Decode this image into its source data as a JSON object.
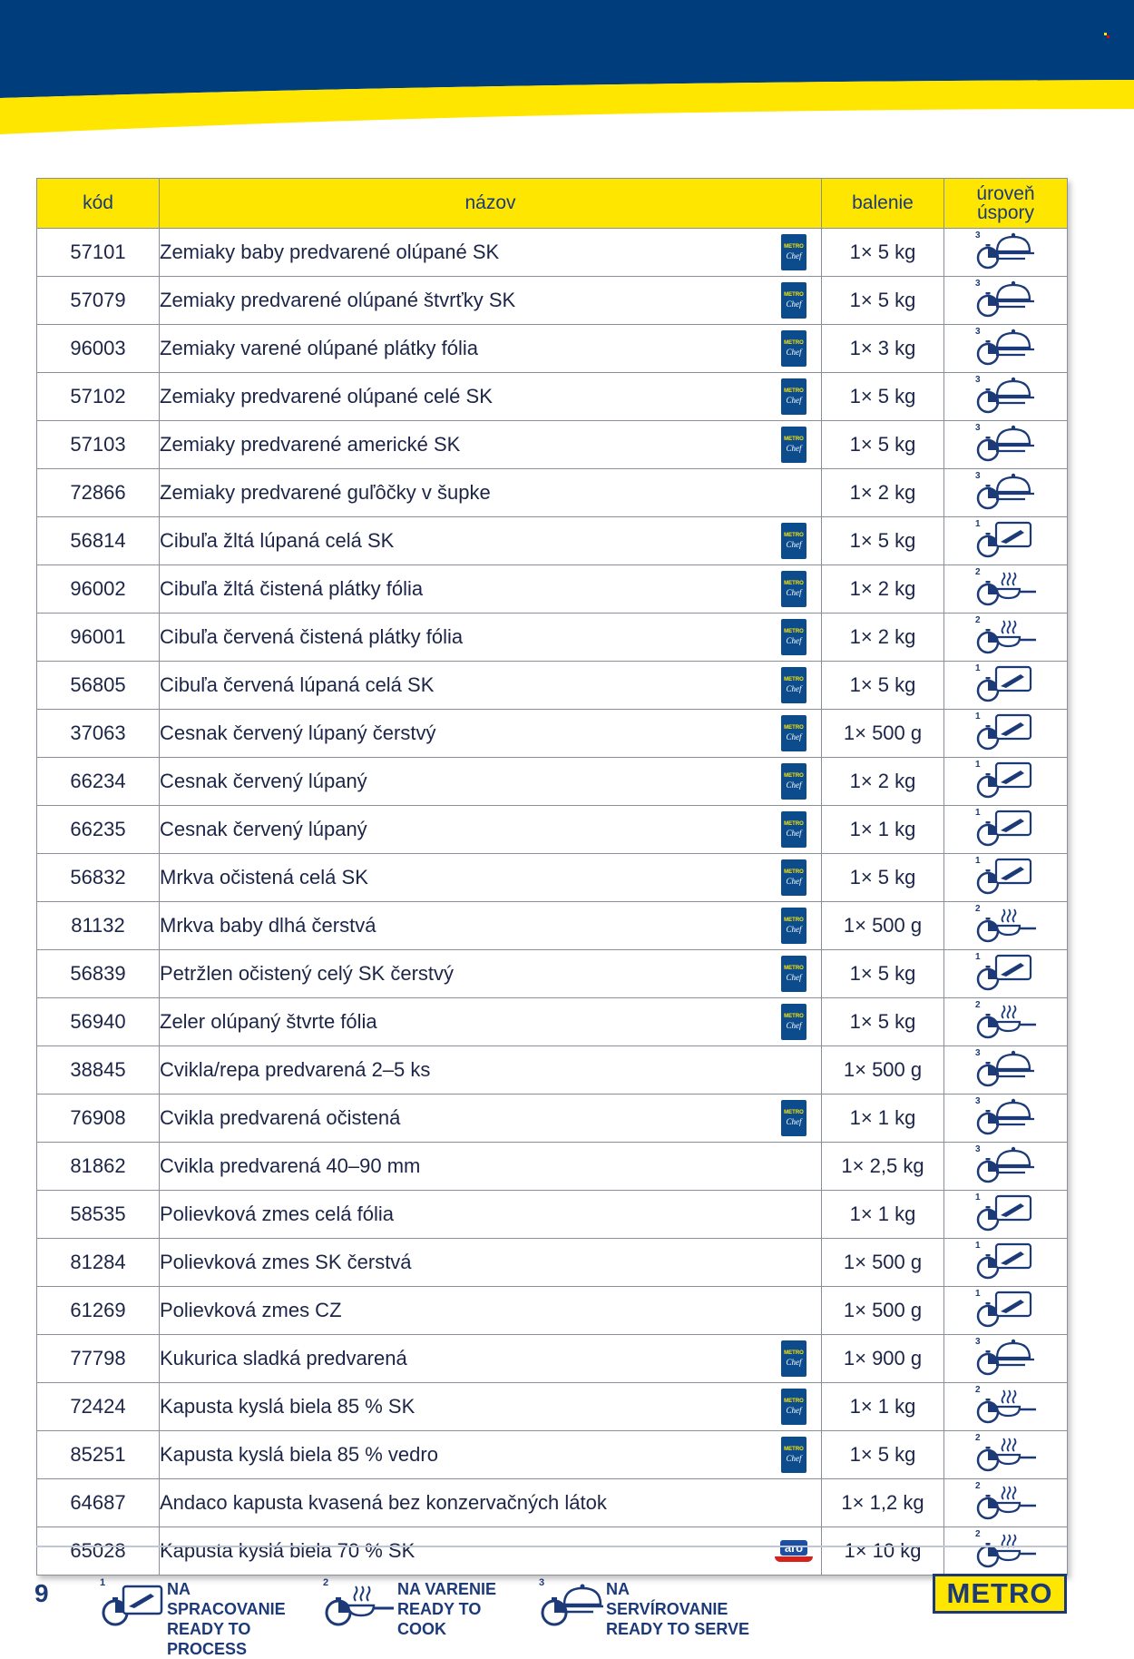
{
  "colors": {
    "brand_blue": "#003d7c",
    "brand_yellow": "#ffe600",
    "text_dark": "#1d2b4f"
  },
  "table": {
    "headers": {
      "code": "kód",
      "name": "názov",
      "pack": "balenie",
      "savings_line1": "úroveň",
      "savings_line2": "úspory"
    },
    "rows": [
      {
        "code": "57101",
        "name": "Zemiaky baby predvarené olúpané SK",
        "brand": "metro-chef",
        "pack": "1× 5 kg",
        "level": 3
      },
      {
        "code": "57079",
        "name": "Zemiaky predvarené olúpané štvrťky SK",
        "brand": "metro-chef",
        "pack": "1× 5 kg",
        "level": 3
      },
      {
        "code": "96003",
        "name": "Zemiaky varené olúpané plátky fólia",
        "brand": "metro-chef",
        "pack": "1× 3 kg",
        "level": 3
      },
      {
        "code": "57102",
        "name": "Zemiaky predvarené olúpané celé SK",
        "brand": "metro-chef",
        "pack": "1× 5 kg",
        "level": 3
      },
      {
        "code": "57103",
        "name": "Zemiaky predvarené americké SK",
        "brand": "metro-chef",
        "pack": "1× 5 kg",
        "level": 3
      },
      {
        "code": "72866",
        "name": "Zemiaky predvarené guľôčky v šupke",
        "brand": "",
        "pack": "1× 2 kg",
        "level": 3
      },
      {
        "code": "56814",
        "name": "Cibuľa žltá lúpaná celá SK",
        "brand": "metro-chef",
        "pack": "1× 5 kg",
        "level": 1
      },
      {
        "code": "96002",
        "name": "Cibuľa žltá čistená plátky fólia",
        "brand": "metro-chef",
        "pack": "1× 2 kg",
        "level": 2
      },
      {
        "code": "96001",
        "name": "Cibuľa červená čistená plátky fólia",
        "brand": "metro-chef",
        "pack": "1× 2 kg",
        "level": 2
      },
      {
        "code": "56805",
        "name": "Cibuľa červená lúpaná celá SK",
        "brand": "metro-chef",
        "pack": "1× 5 kg",
        "level": 1
      },
      {
        "code": "37063",
        "name": "Cesnak červený lúpaný čerstvý",
        "brand": "metro-chef",
        "pack": "1× 500 g",
        "level": 1
      },
      {
        "code": "66234",
        "name": "Cesnak červený lúpaný",
        "brand": "metro-chef",
        "pack": "1× 2 kg",
        "level": 1
      },
      {
        "code": "66235",
        "name": "Cesnak červený lúpaný",
        "brand": "metro-chef",
        "pack": "1× 1 kg",
        "level": 1
      },
      {
        "code": "56832",
        "name": "Mrkva očistená celá SK",
        "brand": "metro-chef",
        "pack": "1× 5 kg",
        "level": 1
      },
      {
        "code": "81132",
        "name": "Mrkva baby dlhá čerstvá",
        "brand": "metro-chef",
        "pack": "1× 500 g",
        "level": 2
      },
      {
        "code": "56839",
        "name": "Petržlen očistený celý SK čerstvý",
        "brand": "metro-chef",
        "pack": "1× 5 kg",
        "level": 1
      },
      {
        "code": "56940",
        "name": "Zeler olúpaný štvrte fólia",
        "brand": "metro-chef",
        "pack": "1× 5 kg",
        "level": 2
      },
      {
        "code": "38845",
        "name": "Cvikla/repa predvarená 2–5 ks",
        "brand": "",
        "pack": "1× 500 g",
        "level": 3
      },
      {
        "code": "76908",
        "name": "Cvikla predvarená očistená",
        "brand": "metro-chef",
        "pack": "1× 1 kg",
        "level": 3
      },
      {
        "code": "81862",
        "name": "Cvikla predvarená 40–90 mm",
        "brand": "",
        "pack": "1× 2,5 kg",
        "level": 3
      },
      {
        "code": "58535",
        "name": "Polievková zmes celá fólia",
        "brand": "",
        "pack": "1× 1 kg",
        "level": 1
      },
      {
        "code": "81284",
        "name": "Polievková zmes SK čerstvá",
        "brand": "",
        "pack": "1× 500 g",
        "level": 1
      },
      {
        "code": "61269",
        "name": "Polievková zmes CZ",
        "brand": "",
        "pack": "1× 500 g",
        "level": 1
      },
      {
        "code": "77798",
        "name": "Kukurica sladká predvarená",
        "brand": "metro-chef",
        "pack": "1× 900 g",
        "level": 3
      },
      {
        "code": "72424",
        "name": "Kapusta kyslá biela 85 % SK",
        "brand": "metro-chef",
        "pack": "1× 1 kg",
        "level": 2
      },
      {
        "code": "85251",
        "name": "Kapusta kyslá biela 85 % vedro",
        "brand": "metro-chef",
        "pack": "1× 5 kg",
        "level": 2
      },
      {
        "code": "64687",
        "name": "Andaco kapusta kvasená bez konzervačných látok",
        "brand": "",
        "pack": "1× 1,2 kg",
        "level": 2
      },
      {
        "code": "65028",
        "name": "Kapusta kyslá biela 70 % SK",
        "brand": "aro",
        "pack": "1× 10 kg",
        "level": 2
      }
    ]
  },
  "brand_logos": {
    "metro_chef": {
      "line1": "METRO",
      "line2": "Chef"
    },
    "aro": {
      "text": "aro"
    }
  },
  "footer": {
    "page_number": "9",
    "legend": [
      {
        "level": "1",
        "line1": "NA SPRACOVANIE",
        "line2": "READY TO PROCESS",
        "icon": "knife-board-icon"
      },
      {
        "level": "2",
        "line1": "NA VARENIE",
        "line2": "READY TO COOK",
        "icon": "cooking-pan-icon"
      },
      {
        "level": "3",
        "line1": "NA SERVÍROVANIE",
        "line2": "READY TO SERVE",
        "icon": "cloche-icon"
      }
    ],
    "logo_text": "METRO"
  }
}
